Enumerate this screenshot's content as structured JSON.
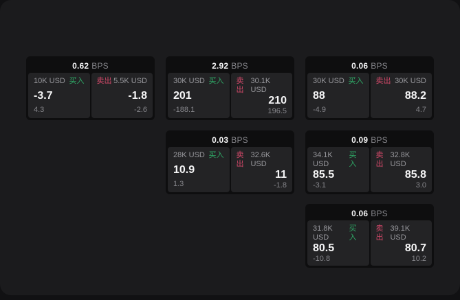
{
  "labels": {
    "bps_unit": "BPS",
    "buy": "买入",
    "sell": "卖出"
  },
  "colors": {
    "background": "#111113",
    "panel": "#1b1b1d",
    "card": "#0e0e0f",
    "subcard": "#232325",
    "text_primary": "#f5f5f6",
    "text_muted": "#97979c",
    "text_dim": "#85858a",
    "buy_green": "#2fa866",
    "sell_red": "#cf4868"
  },
  "cards": [
    {
      "bps": "0.62",
      "col": 1,
      "row": 1,
      "buy": {
        "amount": "10K USD",
        "value": "-3.7",
        "sub": "4.3"
      },
      "sell": {
        "amount": "5.5K USD",
        "value": "-1.8",
        "sub": "-2.6"
      }
    },
    {
      "bps": "2.92",
      "col": 2,
      "row": 1,
      "buy": {
        "amount": "30K USD",
        "value": "201",
        "sub": "-188.1"
      },
      "sell": {
        "amount": "30.1K USD",
        "value": "210",
        "sub": "196.5"
      }
    },
    {
      "bps": "0.06",
      "col": 3,
      "row": 1,
      "buy": {
        "amount": "30K USD",
        "value": "88",
        "sub": "-4.9"
      },
      "sell": {
        "amount": "30K USD",
        "value": "88.2",
        "sub": "4.7"
      }
    },
    {
      "bps": "0.03",
      "col": 2,
      "row": 2,
      "buy": {
        "amount": "28K USD",
        "value": "10.9",
        "sub": "1.3"
      },
      "sell": {
        "amount": "32.6K USD",
        "value": "11",
        "sub": "-1.8"
      }
    },
    {
      "bps": "0.09",
      "col": 3,
      "row": 2,
      "buy": {
        "amount": "34.1K USD",
        "value": "85.5",
        "sub": "-3.1"
      },
      "sell": {
        "amount": "32.8K USD",
        "value": "85.8",
        "sub": "3.0"
      }
    },
    {
      "bps": "0.06",
      "col": 3,
      "row": 3,
      "buy": {
        "amount": "31.8K USD",
        "value": "80.5",
        "sub": "-10.8"
      },
      "sell": {
        "amount": "39.1K USD",
        "value": "80.7",
        "sub": "10.2"
      }
    }
  ]
}
